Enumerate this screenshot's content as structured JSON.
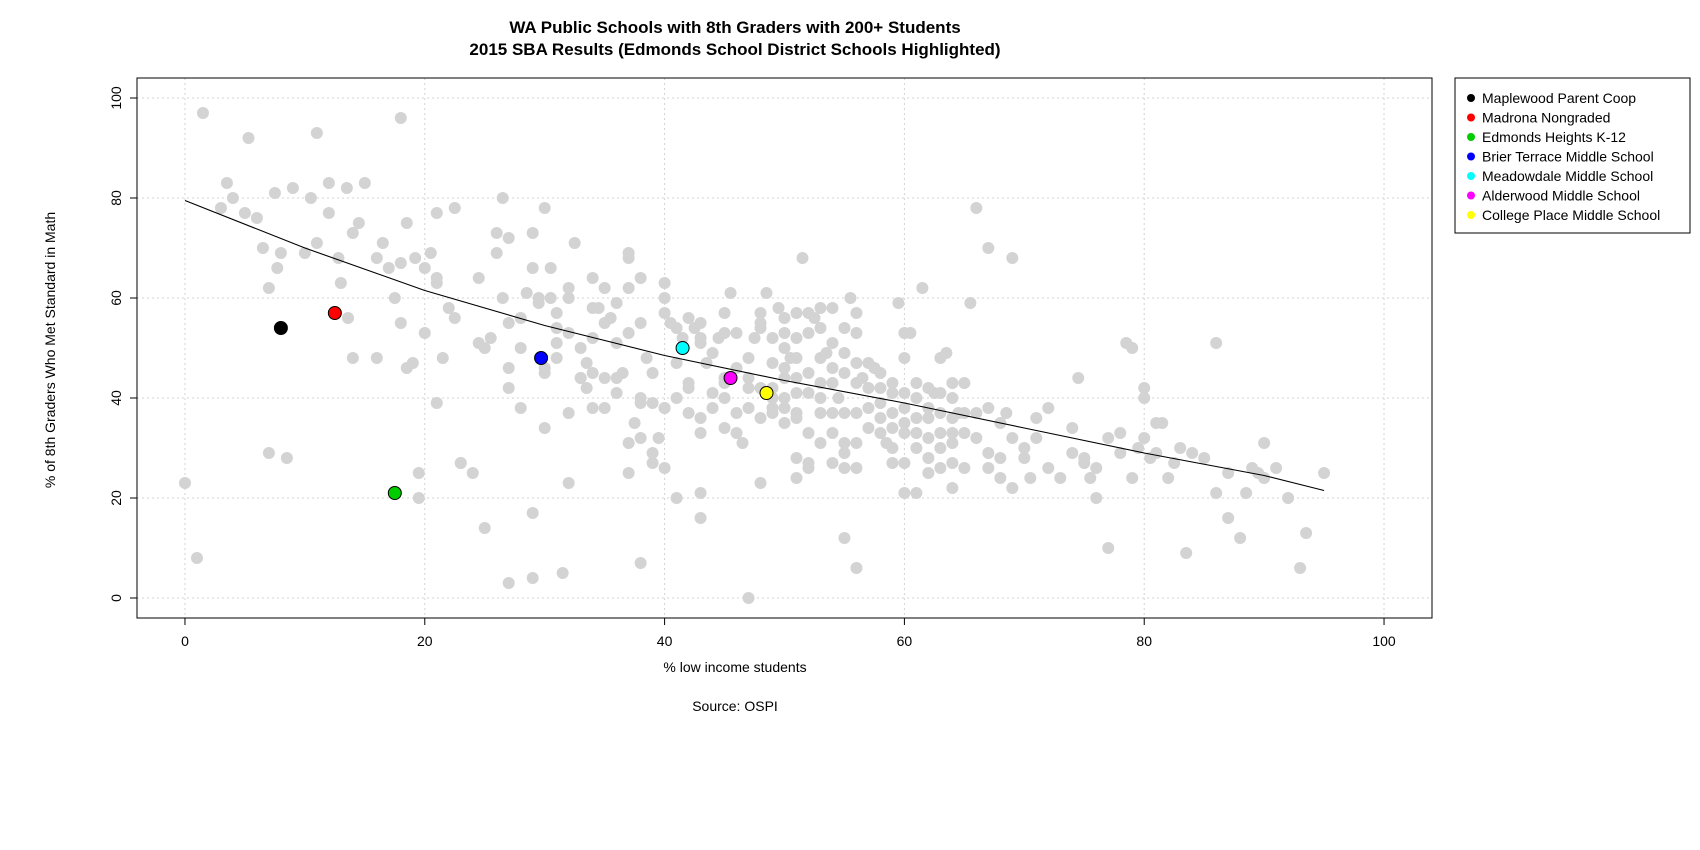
{
  "chart_data": {
    "type": "scatter",
    "title": "WA Public Schools with 8th Graders with 200+ Students",
    "subtitle": "2015 SBA Results (Edmonds School District Schools Highlighted)",
    "xlabel": "% low income students",
    "ylabel": "% of 8th Graders Who Met Standard in Math",
    "caption": "Source: OSPI",
    "xlim": [
      -4,
      104
    ],
    "ylim": [
      -4,
      104
    ],
    "x_ticks": [
      0,
      20,
      40,
      60,
      80,
      100
    ],
    "y_ticks": [
      0,
      20,
      40,
      60,
      80,
      100
    ],
    "grid": true,
    "legend_position": "outside-top-right",
    "background_points_color": "#d3d3d3",
    "background_points": [
      [
        0,
        23
      ],
      [
        1,
        8
      ],
      [
        1.5,
        97
      ],
      [
        3,
        78
      ],
      [
        3.5,
        83
      ],
      [
        4,
        80
      ],
      [
        5,
        77
      ],
      [
        5.3,
        92
      ],
      [
        6,
        76
      ],
      [
        6.5,
        70
      ],
      [
        7,
        62
      ],
      [
        7,
        29
      ],
      [
        7.5,
        81
      ],
      [
        8,
        69
      ],
      [
        7.7,
        66
      ],
      [
        8.5,
        28
      ],
      [
        9,
        82
      ],
      [
        10,
        69
      ],
      [
        10.5,
        80
      ],
      [
        11,
        93
      ],
      [
        11,
        71
      ],
      [
        12,
        83
      ],
      [
        12,
        77
      ],
      [
        12.8,
        68
      ],
      [
        13,
        63
      ],
      [
        13.5,
        82
      ],
      [
        13.6,
        56
      ],
      [
        14,
        48
      ],
      [
        14,
        73
      ],
      [
        14.5,
        75
      ],
      [
        15,
        83
      ],
      [
        16,
        68
      ],
      [
        16,
        48
      ],
      [
        16.5,
        71
      ],
      [
        17,
        66
      ],
      [
        17.5,
        60
      ],
      [
        18,
        96
      ],
      [
        18,
        67
      ],
      [
        18,
        55
      ],
      [
        18.5,
        75
      ],
      [
        18.5,
        46
      ],
      [
        19,
        47
      ],
      [
        19.2,
        68
      ],
      [
        19.5,
        25
      ],
      [
        19.5,
        20
      ],
      [
        20,
        66
      ],
      [
        20,
        53
      ],
      [
        20.5,
        69
      ],
      [
        21,
        77
      ],
      [
        21,
        64
      ],
      [
        21,
        63
      ],
      [
        21,
        39
      ],
      [
        21.5,
        48
      ],
      [
        22,
        58
      ],
      [
        22.5,
        56
      ],
      [
        22.5,
        78
      ],
      [
        23,
        27
      ],
      [
        23,
        27
      ],
      [
        24,
        25
      ],
      [
        24.5,
        64
      ],
      [
        24.5,
        51
      ],
      [
        25,
        50
      ],
      [
        25,
        14
      ],
      [
        25.5,
        52
      ],
      [
        26,
        69
      ],
      [
        26,
        73
      ],
      [
        26.5,
        80
      ],
      [
        26.5,
        60
      ],
      [
        27,
        55
      ],
      [
        27,
        46
      ],
      [
        27,
        42
      ],
      [
        27,
        3
      ],
      [
        27,
        72
      ],
      [
        28,
        56
      ],
      [
        28,
        50
      ],
      [
        28,
        38
      ],
      [
        28.5,
        61
      ],
      [
        29,
        73
      ],
      [
        29,
        66
      ],
      [
        29,
        17
      ],
      [
        29.5,
        59
      ],
      [
        29.5,
        60
      ],
      [
        29,
        4
      ],
      [
        30,
        78
      ],
      [
        30,
        46
      ],
      [
        30,
        45
      ],
      [
        30,
        34
      ],
      [
        30.5,
        60
      ],
      [
        30.5,
        66
      ],
      [
        31,
        57
      ],
      [
        31,
        48
      ],
      [
        31,
        51
      ],
      [
        31,
        54
      ],
      [
        31.5,
        5
      ],
      [
        32,
        62
      ],
      [
        32,
        60
      ],
      [
        32,
        53
      ],
      [
        32,
        23
      ],
      [
        32,
        37
      ],
      [
        32.5,
        71
      ],
      [
        33,
        44
      ],
      [
        33,
        44
      ],
      [
        33,
        50
      ],
      [
        33.5,
        42
      ],
      [
        33.5,
        47
      ],
      [
        34,
        64
      ],
      [
        34,
        58
      ],
      [
        34,
        52
      ],
      [
        34,
        45
      ],
      [
        34,
        38
      ],
      [
        34.5,
        58
      ],
      [
        35,
        62
      ],
      [
        35,
        55
      ],
      [
        35,
        38
      ],
      [
        35,
        44
      ],
      [
        35.5,
        56
      ],
      [
        36,
        59
      ],
      [
        36,
        51
      ],
      [
        36,
        44
      ],
      [
        36,
        41
      ],
      [
        36.5,
        45
      ],
      [
        37,
        69
      ],
      [
        37,
        68
      ],
      [
        37,
        62
      ],
      [
        37,
        53
      ],
      [
        37,
        31
      ],
      [
        37,
        25
      ],
      [
        37.5,
        35
      ],
      [
        38,
        64
      ],
      [
        38,
        55
      ],
      [
        38,
        40
      ],
      [
        38,
        39
      ],
      [
        38,
        32
      ],
      [
        38,
        7
      ],
      [
        38.5,
        48
      ],
      [
        39,
        45
      ],
      [
        39,
        39
      ],
      [
        39,
        29
      ],
      [
        39,
        27
      ],
      [
        39.5,
        32
      ],
      [
        40,
        63
      ],
      [
        40,
        60
      ],
      [
        40,
        57
      ],
      [
        40,
        38
      ],
      [
        40,
        38
      ],
      [
        40,
        26
      ],
      [
        40.5,
        55
      ],
      [
        41,
        54
      ],
      [
        41,
        47
      ],
      [
        41,
        40
      ],
      [
        41,
        20
      ],
      [
        41.5,
        52
      ],
      [
        42,
        56
      ],
      [
        42,
        43
      ],
      [
        42,
        42
      ],
      [
        42,
        37
      ],
      [
        42.5,
        54
      ],
      [
        43,
        55
      ],
      [
        43,
        52
      ],
      [
        43,
        51
      ],
      [
        43,
        36
      ],
      [
        43,
        33
      ],
      [
        43,
        21
      ],
      [
        43,
        16
      ],
      [
        43.5,
        47
      ],
      [
        44,
        49
      ],
      [
        44,
        41
      ],
      [
        44,
        38
      ],
      [
        44.5,
        52
      ],
      [
        45,
        57
      ],
      [
        45,
        53
      ],
      [
        45,
        44
      ],
      [
        45,
        43
      ],
      [
        45,
        40
      ],
      [
        45,
        34
      ],
      [
        45.5,
        61
      ],
      [
        46,
        53
      ],
      [
        46,
        46
      ],
      [
        46,
        37
      ],
      [
        46,
        33
      ],
      [
        46.5,
        31
      ],
      [
        47,
        0
      ],
      [
        47,
        48
      ],
      [
        47,
        44
      ],
      [
        47,
        42
      ],
      [
        47,
        38
      ],
      [
        47.5,
        52
      ],
      [
        48,
        57
      ],
      [
        48,
        55
      ],
      [
        48,
        54
      ],
      [
        48,
        42
      ],
      [
        48,
        36
      ],
      [
        48,
        23
      ],
      [
        48.5,
        61
      ],
      [
        49,
        52
      ],
      [
        49,
        47
      ],
      [
        49,
        42
      ],
      [
        49,
        40
      ],
      [
        49,
        38
      ],
      [
        49,
        37
      ],
      [
        49.5,
        58
      ],
      [
        50,
        56
      ],
      [
        50,
        53
      ],
      [
        50,
        50
      ],
      [
        50,
        46
      ],
      [
        50,
        44
      ],
      [
        50,
        40
      ],
      [
        50,
        38
      ],
      [
        50,
        35
      ],
      [
        50.5,
        48
      ],
      [
        51,
        57
      ],
      [
        51,
        52
      ],
      [
        51,
        48
      ],
      [
        51,
        44
      ],
      [
        51,
        41
      ],
      [
        51,
        37
      ],
      [
        51,
        36
      ],
      [
        51,
        28
      ],
      [
        51,
        24
      ],
      [
        51.5,
        68
      ],
      [
        52,
        57
      ],
      [
        52,
        53
      ],
      [
        52,
        45
      ],
      [
        52,
        41
      ],
      [
        52,
        33
      ],
      [
        52,
        27
      ],
      [
        52,
        26
      ],
      [
        52.5,
        56
      ],
      [
        53,
        58
      ],
      [
        53,
        54
      ],
      [
        53,
        48
      ],
      [
        53,
        43
      ],
      [
        53,
        40
      ],
      [
        53,
        37
      ],
      [
        53,
        31
      ],
      [
        53.5,
        49
      ],
      [
        54,
        58
      ],
      [
        54,
        51
      ],
      [
        54,
        46
      ],
      [
        54,
        43
      ],
      [
        54,
        37
      ],
      [
        54,
        33
      ],
      [
        54,
        27
      ],
      [
        54.5,
        40
      ],
      [
        55,
        54
      ],
      [
        55,
        49
      ],
      [
        55,
        45
      ],
      [
        55,
        37
      ],
      [
        55,
        31
      ],
      [
        55,
        29
      ],
      [
        55,
        26
      ],
      [
        55,
        12
      ],
      [
        55.5,
        60
      ],
      [
        56,
        57
      ],
      [
        56,
        53
      ],
      [
        56,
        47
      ],
      [
        56,
        43
      ],
      [
        56,
        37
      ],
      [
        56,
        31
      ],
      [
        56,
        26
      ],
      [
        56,
        6
      ],
      [
        56.5,
        44
      ],
      [
        57,
        47
      ],
      [
        57,
        42
      ],
      [
        57,
        38
      ],
      [
        57,
        34
      ],
      [
        57.5,
        46
      ],
      [
        58,
        45
      ],
      [
        58,
        42
      ],
      [
        58,
        39
      ],
      [
        58,
        36
      ],
      [
        58,
        33
      ],
      [
        58.5,
        31
      ],
      [
        59,
        43
      ],
      [
        59,
        41
      ],
      [
        59,
        37
      ],
      [
        59,
        34
      ],
      [
        59,
        30
      ],
      [
        59,
        27
      ],
      [
        59.5,
        59
      ],
      [
        60,
        53
      ],
      [
        60,
        48
      ],
      [
        60,
        41
      ],
      [
        60,
        38
      ],
      [
        60,
        35
      ],
      [
        60,
        33
      ],
      [
        60,
        27
      ],
      [
        60,
        21
      ],
      [
        60.5,
        53
      ],
      [
        61,
        43
      ],
      [
        61,
        40
      ],
      [
        61,
        36
      ],
      [
        61,
        33
      ],
      [
        61,
        30
      ],
      [
        61,
        21
      ],
      [
        61.5,
        62
      ],
      [
        62,
        42
      ],
      [
        62,
        38
      ],
      [
        62,
        36
      ],
      [
        62,
        32
      ],
      [
        62,
        28
      ],
      [
        62,
        25
      ],
      [
        62.5,
        41
      ],
      [
        63,
        48
      ],
      [
        63,
        41
      ],
      [
        63,
        37
      ],
      [
        63,
        33
      ],
      [
        63,
        30
      ],
      [
        63,
        26
      ],
      [
        63.5,
        49
      ],
      [
        64,
        43
      ],
      [
        64,
        40
      ],
      [
        64,
        36
      ],
      [
        64,
        33
      ],
      [
        64,
        31
      ],
      [
        64,
        27
      ],
      [
        64,
        22
      ],
      [
        64.5,
        37
      ],
      [
        65,
        43
      ],
      [
        65,
        37
      ],
      [
        65,
        33
      ],
      [
        65,
        26
      ],
      [
        65.5,
        59
      ],
      [
        66,
        78
      ],
      [
        66,
        37
      ],
      [
        66,
        32
      ],
      [
        67,
        70
      ],
      [
        67,
        38
      ],
      [
        67,
        29
      ],
      [
        67,
        26
      ],
      [
        68,
        35
      ],
      [
        68,
        28
      ],
      [
        68,
        24
      ],
      [
        68.5,
        37
      ],
      [
        69,
        68
      ],
      [
        69,
        32
      ],
      [
        69,
        22
      ],
      [
        70,
        30
      ],
      [
        70,
        28
      ],
      [
        70.5,
        24
      ],
      [
        71,
        36
      ],
      [
        71,
        32
      ],
      [
        72,
        38
      ],
      [
        72,
        26
      ],
      [
        73,
        24
      ],
      [
        74,
        34
      ],
      [
        74,
        29
      ],
      [
        74.5,
        44
      ],
      [
        75,
        28
      ],
      [
        75,
        27
      ],
      [
        75.5,
        24
      ],
      [
        76,
        26
      ],
      [
        76,
        20
      ],
      [
        77,
        32
      ],
      [
        77,
        10
      ],
      [
        78,
        33
      ],
      [
        78,
        29
      ],
      [
        78.5,
        51
      ],
      [
        79,
        50
      ],
      [
        79,
        24
      ],
      [
        79.5,
        30
      ],
      [
        80,
        42
      ],
      [
        80,
        40
      ],
      [
        80,
        32
      ],
      [
        80.5,
        28
      ],
      [
        81,
        35
      ],
      [
        81,
        29
      ],
      [
        81.5,
        35
      ],
      [
        82,
        24
      ],
      [
        82.5,
        27
      ],
      [
        83,
        30
      ],
      [
        83.5,
        9
      ],
      [
        84,
        29
      ],
      [
        85,
        28
      ],
      [
        86,
        51
      ],
      [
        86,
        21
      ],
      [
        87,
        25
      ],
      [
        87,
        16
      ],
      [
        88,
        12
      ],
      [
        88.5,
        21
      ],
      [
        89,
        26
      ],
      [
        89.5,
        25
      ],
      [
        90,
        24
      ],
      [
        90,
        31
      ],
      [
        91,
        26
      ],
      [
        92,
        20
      ],
      [
        93,
        6
      ],
      [
        93.5,
        13
      ],
      [
        95,
        25
      ]
    ],
    "series": [
      {
        "name": "Maplewood Parent Coop",
        "color": "#000000",
        "x": 8,
        "y": 54
      },
      {
        "name": "Madrona Nongraded",
        "color": "#ff0000",
        "x": 12.5,
        "y": 57
      },
      {
        "name": "Edmonds Heights K-12",
        "color": "#00cd00",
        "x": 17.5,
        "y": 21
      },
      {
        "name": "Brier Terrace Middle School",
        "color": "#0000ff",
        "x": 29.7,
        "y": 48
      },
      {
        "name": "Meadowdale Middle School",
        "color": "#00ffff",
        "x": 41.5,
        "y": 50
      },
      {
        "name": "Alderwood Middle School",
        "color": "#ff00ff",
        "x": 45.5,
        "y": 44
      },
      {
        "name": "College Place Middle School",
        "color": "#ffff00",
        "x": 48.5,
        "y": 41
      }
    ],
    "trend_line": [
      [
        0,
        79.5
      ],
      [
        10,
        70
      ],
      [
        20,
        61.5
      ],
      [
        30,
        54.5
      ],
      [
        40,
        48.5
      ],
      [
        50,
        43.5
      ],
      [
        60,
        39
      ],
      [
        70,
        34
      ],
      [
        80,
        29
      ],
      [
        90,
        24.5
      ],
      [
        95,
        21.5
      ]
    ]
  }
}
